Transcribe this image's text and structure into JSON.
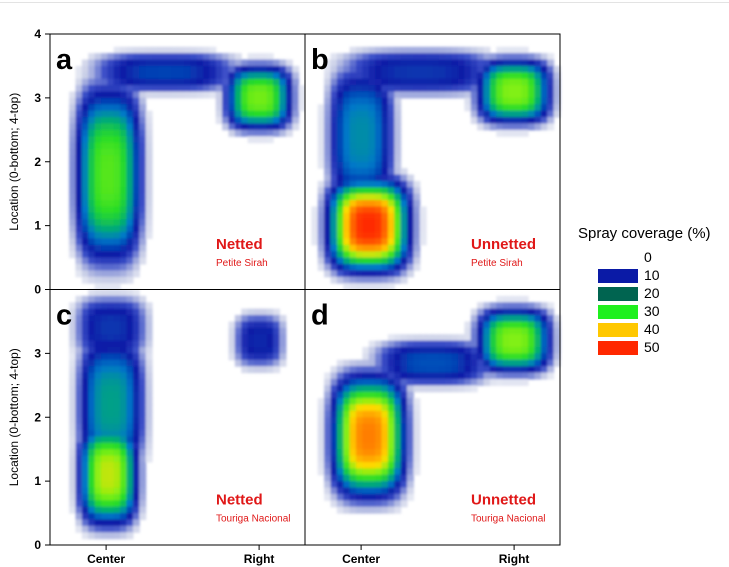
{
  "chart_data": {
    "type": "heatmap",
    "ylabel": "Location (0-bottom; 4-top)",
    "y_ticks": [
      "0",
      "1",
      "2",
      "3",
      "4"
    ],
    "ylim": [
      0,
      4
    ],
    "x_categories": [
      "Center",
      "Right"
    ],
    "legend": {
      "title": "Spray coverage (%)",
      "levels": [
        {
          "label": "0",
          "color": "#ffffff"
        },
        {
          "label": "10",
          "color": "#0a1aa6"
        },
        {
          "label": "20",
          "color": "#006450"
        },
        {
          "label": "30",
          "color": "#1ef01e"
        },
        {
          "label": "40",
          "color": "#ffc800"
        },
        {
          "label": "50",
          "color": "#ff2800"
        }
      ]
    },
    "panels": [
      {
        "letter": "a",
        "treatment": "Netted",
        "cultivar": "Petite Sirah",
        "blobs": [
          {
            "x": 0.23,
            "y": 1.8,
            "sx": 0.09,
            "sy": 0.95,
            "peak": 30
          },
          {
            "x": 0.82,
            "y": 3.0,
            "sx": 0.09,
            "sy": 0.35,
            "peak": 32
          },
          {
            "x": 0.45,
            "y": 3.4,
            "sx": 0.2,
            "sy": 0.22,
            "peak": 12
          }
        ]
      },
      {
        "letter": "b",
        "treatment": "Unnetted",
        "cultivar": "Petite Sirah",
        "blobs": [
          {
            "x": 0.25,
            "y": 1.0,
            "sx": 0.11,
            "sy": 0.5,
            "peak": 52
          },
          {
            "x": 0.22,
            "y": 2.4,
            "sx": 0.09,
            "sy": 0.75,
            "peak": 18
          },
          {
            "x": 0.82,
            "y": 3.1,
            "sx": 0.1,
            "sy": 0.35,
            "peak": 33
          },
          {
            "x": 0.45,
            "y": 3.4,
            "sx": 0.22,
            "sy": 0.25,
            "peak": 11
          }
        ]
      },
      {
        "letter": "c",
        "treatment": "Netted",
        "cultivar": "Touriga Nacional",
        "blobs": [
          {
            "x": 0.23,
            "y": 1.1,
            "sx": 0.08,
            "sy": 0.55,
            "peak": 36
          },
          {
            "x": 0.24,
            "y": 2.2,
            "sx": 0.09,
            "sy": 0.75,
            "peak": 20
          },
          {
            "x": 0.82,
            "y": 3.2,
            "sx": 0.07,
            "sy": 0.3,
            "peak": 10
          },
          {
            "x": 0.24,
            "y": 3.4,
            "sx": 0.1,
            "sy": 0.35,
            "peak": 11
          }
        ]
      },
      {
        "letter": "d",
        "treatment": "Unnetted",
        "cultivar": "Touriga Nacional",
        "blobs": [
          {
            "x": 0.25,
            "y": 1.7,
            "sx": 0.1,
            "sy": 0.65,
            "peak": 46
          },
          {
            "x": 0.82,
            "y": 3.2,
            "sx": 0.1,
            "sy": 0.35,
            "peak": 33
          },
          {
            "x": 0.5,
            "y": 2.85,
            "sx": 0.16,
            "sy": 0.25,
            "peak": 13
          }
        ]
      }
    ]
  }
}
